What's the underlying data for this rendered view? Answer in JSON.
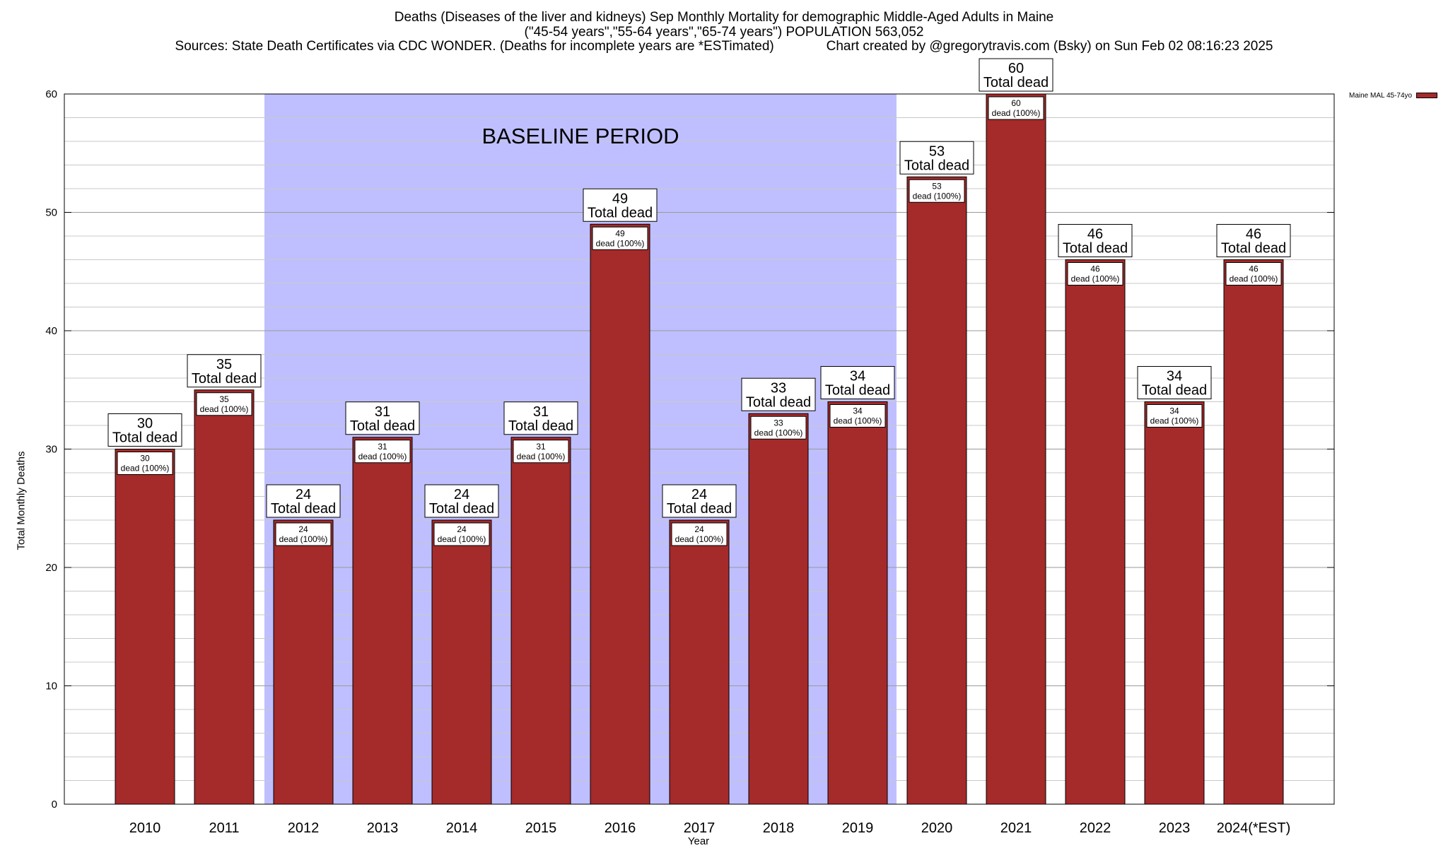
{
  "title_lines": [
    "Deaths (Diseases of the liver and kidneys) Sep Monthly Mortality for demographic Middle-Aged Adults in Maine",
    "(\"45-54 years\",\"55-64 years\",\"65-74 years\") POPULATION 563,052",
    "Sources: State Death Certificates via CDC WONDER. (Deaths for incomplete years are *ESTimated)              Chart created by @gregorytravis.com (Bsky) on Sun Feb 02 08:16:23 2025"
  ],
  "colors": {
    "bar": "#a52a2a",
    "baseline_band": "#bfbfff",
    "grid": "#c8c8c8"
  },
  "chart_data": {
    "type": "bar",
    "title": "Deaths (Diseases of the liver and kidneys) Sep Monthly Mortality for demographic Middle-Aged Adults in Maine",
    "xlabel": "Year",
    "ylabel": "Total Monthly Deaths",
    "ylim": [
      0,
      60
    ],
    "yticks": [
      0,
      10,
      20,
      30,
      40,
      50,
      60
    ],
    "grid": true,
    "legend_placement": "top-right",
    "categories": [
      "2010",
      "2011",
      "2012",
      "2013",
      "2014",
      "2015",
      "2016",
      "2017",
      "2018",
      "2019",
      "2020",
      "2021",
      "2022",
      "2023",
      "2024(*EST)"
    ],
    "series": [
      {
        "name": "Maine MAL 45-74yo",
        "values": [
          30,
          35,
          24,
          31,
          24,
          31,
          49,
          24,
          33,
          34,
          53,
          60,
          46,
          34,
          46
        ]
      }
    ],
    "annotation_total_suffix": "Total dead",
    "annotation_inner_suffix": "dead (100%)",
    "baseline_period": {
      "label": "BASELINE PERIOD",
      "start": "2012",
      "end": "2019"
    }
  }
}
